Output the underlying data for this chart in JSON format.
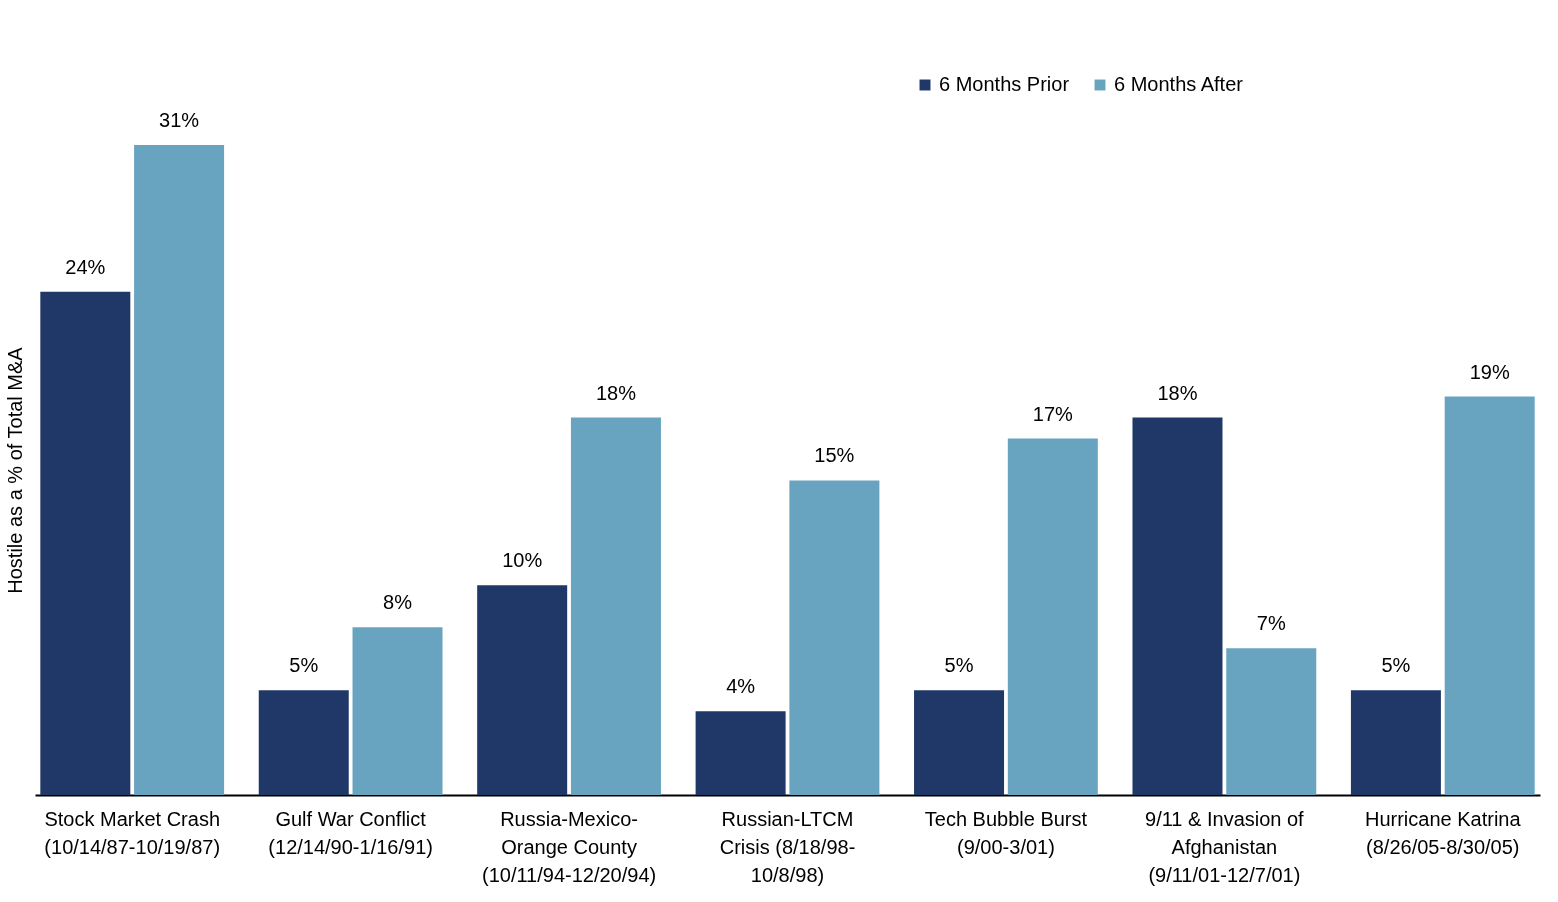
{
  "chart_data": {
    "type": "bar",
    "ylabel": "Hostile as a % of Total M&A",
    "categories": [
      "Stock Market Crash\n(10/14/87-10/19/87)",
      "Gulf War Conflict\n(12/14/90-1/16/91)",
      "Russia-Mexico-\nOrange County\n(10/11/94-12/20/94)",
      "Russian-LTCM\nCrisis (8/18/98-\n10/8/98)",
      "Tech Bubble Burst\n(9/00-3/01)",
      "9/11 & Invasion of\nAfghanistan\n(9/11/01-12/7/01)",
      "Hurricane Katrina\n(8/26/05-8/30/05)"
    ],
    "series": [
      {
        "name": "6 Months Prior",
        "color": "#1f3868",
        "values": [
          24,
          5,
          10,
          4,
          5,
          18,
          5
        ],
        "value_labels": [
          "24%",
          "5%",
          "10%",
          "4%",
          "5%",
          "18%",
          "5%"
        ]
      },
      {
        "name": "6 Months After",
        "color": "#68a4c0",
        "values": [
          31,
          8,
          18,
          15,
          17,
          7,
          19
        ],
        "value_labels": [
          "31%",
          "8%",
          "18%",
          "15%",
          "17%",
          "7%",
          "19%"
        ]
      }
    ],
    "legend": "top right",
    "grid": false
  }
}
